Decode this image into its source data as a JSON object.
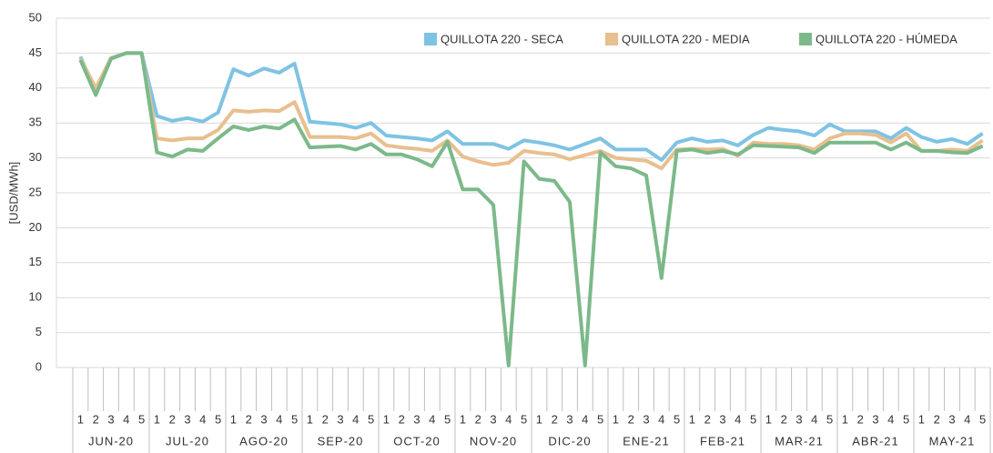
{
  "chart_data": {
    "type": "line",
    "y_label": "[USD/MWh]",
    "categories": [
      "1",
      "2",
      "3",
      "4",
      "5",
      "1",
      "2",
      "3",
      "4",
      "5",
      "1",
      "2",
      "3",
      "4",
      "5",
      "1",
      "2",
      "3",
      "4",
      "5",
      "1",
      "2",
      "3",
      "4",
      "5",
      "1",
      "2",
      "3",
      "4",
      "5",
      "1",
      "2",
      "3",
      "4",
      "5",
      "1",
      "2",
      "3",
      "4",
      "5",
      "1",
      "2",
      "3",
      "4",
      "5",
      "1",
      "2",
      "3",
      "4",
      "5",
      "1",
      "2",
      "3",
      "4",
      "5",
      "1",
      "2",
      "3",
      "4",
      "5"
    ],
    "groups": [
      "JUN-20",
      "JUL-20",
      "AGO-20",
      "SEP-20",
      "OCT-20",
      "NOV-20",
      "DIC-20",
      "ENE-21",
      "FEB-21",
      "MAR-21",
      "ABR-21",
      "MAY-21"
    ],
    "ylim": [
      0,
      50
    ],
    "yticks": [
      0,
      5,
      10,
      15,
      20,
      25,
      30,
      35,
      40,
      45,
      50
    ],
    "grid": true,
    "legend": "top-right",
    "series": [
      {
        "name": "QUILLOTA 220 - SECA",
        "color": "#7fc3e3",
        "values": [
          44.5,
          39.5,
          44.3,
          45,
          45,
          36,
          35.3,
          35.7,
          35.2,
          36.5,
          42.7,
          41.8,
          42.8,
          42.2,
          43.5,
          35.2,
          35,
          34.8,
          34.3,
          35,
          33.2,
          33,
          32.8,
          32.5,
          33.8,
          32,
          32,
          32,
          31.3,
          32.5,
          32.2,
          31.8,
          31.2,
          32,
          32.8,
          31.2,
          31.2,
          31.2,
          29.7,
          32.2,
          32.8,
          32.3,
          32.5,
          31.8,
          33.3,
          34.3,
          34,
          33.8,
          33.2,
          34.8,
          33.8,
          33.8,
          33.8,
          32.8,
          34.3,
          33,
          32.3,
          32.7,
          32,
          33.5
        ]
      },
      {
        "name": "QUILLOTA 220 - MEDIA",
        "color": "#e8bf8e",
        "values": [
          44.2,
          40,
          44.3,
          45,
          45,
          32.8,
          32.5,
          32.8,
          32.8,
          34,
          36.8,
          36.6,
          36.8,
          36.7,
          38,
          33,
          33,
          33,
          32.8,
          33.5,
          31.8,
          31.5,
          31.3,
          31,
          32.5,
          30.2,
          29.5,
          29,
          29.3,
          31,
          30.7,
          30.5,
          29.8,
          30.4,
          31,
          30,
          29.8,
          29.6,
          28.5,
          31.2,
          31.3,
          31.2,
          31.3,
          30.3,
          32.2,
          32,
          32,
          31.8,
          31.2,
          32.8,
          33.5,
          33.5,
          33.3,
          32.2,
          33.5,
          31,
          31,
          31.2,
          31,
          32.5
        ]
      },
      {
        "name": "QUILLOTA 220 - HÚMEDA",
        "color": "#7cb98a",
        "values": [
          44,
          39,
          44.2,
          45,
          45,
          30.8,
          30.2,
          31.2,
          31,
          32.8,
          34.5,
          34,
          34.5,
          34.2,
          35.5,
          31.5,
          31.6,
          31.7,
          31.2,
          32,
          30.5,
          30.5,
          29.8,
          28.8,
          32.3,
          25.5,
          25.5,
          23.3,
          0.3,
          29.5,
          27,
          26.7,
          23.7,
          0.3,
          30.8,
          28.8,
          28.5,
          27.5,
          12.8,
          31,
          31.2,
          30.7,
          31,
          30.5,
          31.8,
          31.7,
          31.6,
          31.5,
          30.7,
          32.2,
          32.2,
          32.2,
          32.2,
          31.2,
          32.2,
          31,
          31,
          30.8,
          30.7,
          31.7
        ]
      }
    ]
  }
}
